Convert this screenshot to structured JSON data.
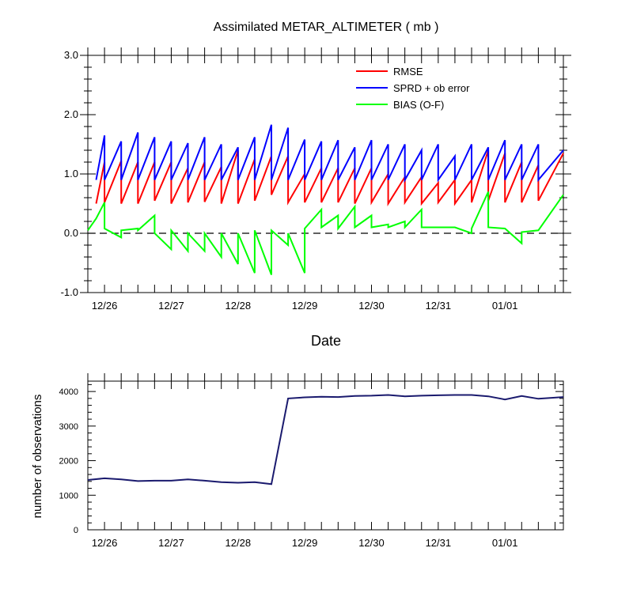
{
  "chart_data": [
    {
      "type": "line",
      "title": "Assimilated METAR_ALTIMETER ( mb )",
      "xlabel": "Date",
      "ylabel": "",
      "ylim": [
        -1.0,
        3.0
      ],
      "yticks": [
        -1.0,
        0.0,
        1.0,
        2.0,
        3.0
      ],
      "ytick_labels": [
        "-1.0",
        "0.0",
        "1.0",
        "2.0",
        "3.0"
      ],
      "x_start": "12/25 18Z",
      "x_end": "01/01 21Z",
      "xticks": [
        {
          "label": "12/26",
          "x": "12/26 00Z"
        },
        {
          "label": "12/27",
          "x": "12/27 00Z"
        },
        {
          "label": "12/28",
          "x": "12/28 00Z"
        },
        {
          "label": "12/29",
          "x": "12/29 00Z"
        },
        {
          "label": "12/30",
          "x": "12/30 00Z"
        },
        {
          "label": "12/31",
          "x": "12/31 00Z"
        },
        {
          "label": "01/01",
          "x": "01/01 00Z"
        }
      ],
      "zero_reference": {
        "value": 0.0,
        "style": "dashed"
      },
      "legend_position": "top-right",
      "series": [
        {
          "name": "RMSE",
          "color": "#ff0000",
          "points": [
            [
              "12/25 21Z",
              0.5
            ],
            [
              "12/26 00Z",
              1.2
            ],
            [
              "12/26 00Z",
              0.52
            ],
            [
              "12/26 06Z",
              1.22
            ],
            [
              "12/26 06Z",
              0.5
            ],
            [
              "12/26 12Z",
              1.2
            ],
            [
              "12/26 12Z",
              0.5
            ],
            [
              "12/26 18Z",
              1.2
            ],
            [
              "12/26 18Z",
              0.55
            ],
            [
              "12/27 00Z",
              1.2
            ],
            [
              "12/27 00Z",
              0.5
            ],
            [
              "12/27 06Z",
              1.1
            ],
            [
              "12/27 06Z",
              0.52
            ],
            [
              "12/27 12Z",
              1.2
            ],
            [
              "12/27 12Z",
              0.53
            ],
            [
              "12/27 18Z",
              1.12
            ],
            [
              "12/27 18Z",
              0.5
            ],
            [
              "12/28 00Z",
              1.4
            ],
            [
              "12/28 00Z",
              0.5
            ],
            [
              "12/28 06Z",
              1.25
            ],
            [
              "12/28 06Z",
              0.55
            ],
            [
              "12/28 12Z",
              1.3
            ],
            [
              "12/28 12Z",
              0.65
            ],
            [
              "12/28 18Z",
              1.3
            ],
            [
              "12/28 18Z",
              0.52
            ],
            [
              "12/29 00Z",
              1.0
            ],
            [
              "12/29 00Z",
              0.52
            ],
            [
              "12/29 06Z",
              1.1
            ],
            [
              "12/29 06Z",
              0.52
            ],
            [
              "12/29 12Z",
              1.1
            ],
            [
              "12/29 12Z",
              0.52
            ],
            [
              "12/29 18Z",
              1.1
            ],
            [
              "12/29 18Z",
              0.5
            ],
            [
              "12/30 00Z",
              1.1
            ],
            [
              "12/30 00Z",
              0.52
            ],
            [
              "12/30 06Z",
              1.0
            ],
            [
              "12/30 06Z",
              0.5
            ],
            [
              "12/30 12Z",
              0.95
            ],
            [
              "12/30 12Z",
              0.52
            ],
            [
              "12/30 18Z",
              0.95
            ],
            [
              "12/30 18Z",
              0.5
            ],
            [
              "12/31 00Z",
              0.85
            ],
            [
              "12/31 00Z",
              0.52
            ],
            [
              "12/31 06Z",
              0.9
            ],
            [
              "12/31 06Z",
              0.5
            ],
            [
              "12/31 12Z",
              0.9
            ],
            [
              "12/31 12Z",
              0.52
            ],
            [
              "12/31 18Z",
              1.4
            ],
            [
              "12/31 18Z",
              0.55
            ],
            [
              "01/01 00Z",
              1.35
            ],
            [
              "01/01 00Z",
              0.52
            ],
            [
              "01/01 06Z",
              1.2
            ],
            [
              "01/01 06Z",
              0.52
            ],
            [
              "01/01 12Z",
              1.15
            ],
            [
              "01/01 12Z",
              0.55
            ],
            [
              "01/01 21Z",
              1.35
            ]
          ]
        },
        {
          "name": "SPRD + ob error",
          "color": "#0000ff",
          "points": [
            [
              "12/25 21Z",
              0.9
            ],
            [
              "12/26 00Z",
              1.65
            ],
            [
              "12/26 00Z",
              0.9
            ],
            [
              "12/26 06Z",
              1.55
            ],
            [
              "12/26 06Z",
              0.9
            ],
            [
              "12/26 12Z",
              1.7
            ],
            [
              "12/26 12Z",
              0.9
            ],
            [
              "12/26 18Z",
              1.62
            ],
            [
              "12/26 18Z",
              0.9
            ],
            [
              "12/27 00Z",
              1.55
            ],
            [
              "12/27 00Z",
              0.9
            ],
            [
              "12/27 06Z",
              1.52
            ],
            [
              "12/27 06Z",
              0.9
            ],
            [
              "12/27 12Z",
              1.62
            ],
            [
              "12/27 12Z",
              0.9
            ],
            [
              "12/27 18Z",
              1.5
            ],
            [
              "12/27 18Z",
              0.9
            ],
            [
              "12/28 00Z",
              1.45
            ],
            [
              "12/28 00Z",
              0.9
            ],
            [
              "12/28 06Z",
              1.62
            ],
            [
              "12/28 06Z",
              0.9
            ],
            [
              "12/28 12Z",
              1.83
            ],
            [
              "12/28 12Z",
              0.9
            ],
            [
              "12/28 18Z",
              1.78
            ],
            [
              "12/28 18Z",
              0.9
            ],
            [
              "12/29 00Z",
              1.58
            ],
            [
              "12/29 00Z",
              0.9
            ],
            [
              "12/29 06Z",
              1.55
            ],
            [
              "12/29 06Z",
              0.9
            ],
            [
              "12/29 12Z",
              1.57
            ],
            [
              "12/29 12Z",
              0.9
            ],
            [
              "12/29 18Z",
              1.45
            ],
            [
              "12/29 18Z",
              0.9
            ],
            [
              "12/30 00Z",
              1.57
            ],
            [
              "12/30 00Z",
              0.9
            ],
            [
              "12/30 06Z",
              1.5
            ],
            [
              "12/30 06Z",
              0.9
            ],
            [
              "12/30 12Z",
              1.5
            ],
            [
              "12/30 12Z",
              0.9
            ],
            [
              "12/30 18Z",
              1.4
            ],
            [
              "12/30 18Z",
              0.9
            ],
            [
              "12/31 00Z",
              1.5
            ],
            [
              "12/31 00Z",
              0.9
            ],
            [
              "12/31 06Z",
              1.3
            ],
            [
              "12/31 06Z",
              0.9
            ],
            [
              "12/31 12Z",
              1.5
            ],
            [
              "12/31 12Z",
              0.9
            ],
            [
              "12/31 18Z",
              1.45
            ],
            [
              "12/31 18Z",
              0.9
            ],
            [
              "01/01 00Z",
              1.57
            ],
            [
              "01/01 00Z",
              0.9
            ],
            [
              "01/01 06Z",
              1.5
            ],
            [
              "01/01 06Z",
              0.9
            ],
            [
              "01/01 12Z",
              1.5
            ],
            [
              "01/01 12Z",
              0.9
            ],
            [
              "01/01 21Z",
              1.4
            ]
          ]
        },
        {
          "name": "BIAS (O-F)",
          "color": "#00ff00",
          "points": [
            [
              "12/25 18Z",
              0.05
            ],
            [
              "12/25 21Z",
              0.25
            ],
            [
              "12/26 00Z",
              0.52
            ],
            [
              "12/26 00Z",
              0.08
            ],
            [
              "12/26 06Z",
              -0.07
            ],
            [
              "12/26 06Z",
              0.05
            ],
            [
              "12/26 12Z",
              0.08
            ],
            [
              "12/26 12Z",
              0.05
            ],
            [
              "12/26 18Z",
              0.3
            ],
            [
              "12/26 18Z",
              0.0
            ],
            [
              "12/27 00Z",
              -0.27
            ],
            [
              "12/27 00Z",
              0.05
            ],
            [
              "12/27 06Z",
              -0.3
            ],
            [
              "12/27 06Z",
              0.0
            ],
            [
              "12/27 12Z",
              -0.3
            ],
            [
              "12/27 12Z",
              0.0
            ],
            [
              "12/27 18Z",
              -0.4
            ],
            [
              "12/27 18Z",
              0.0
            ],
            [
              "12/28 00Z",
              -0.52
            ],
            [
              "12/28 00Z",
              0.0
            ],
            [
              "12/28 06Z",
              -0.67
            ],
            [
              "12/28 06Z",
              0.05
            ],
            [
              "12/28 12Z",
              -0.7
            ],
            [
              "12/28 12Z",
              0.05
            ],
            [
              "12/28 18Z",
              -0.2
            ],
            [
              "12/28 18Z",
              0.0
            ],
            [
              "12/29 00Z",
              -0.67
            ],
            [
              "12/29 00Z",
              0.08
            ],
            [
              "12/29 06Z",
              0.4
            ],
            [
              "12/29 06Z",
              0.1
            ],
            [
              "12/29 12Z",
              0.3
            ],
            [
              "12/29 12Z",
              0.08
            ],
            [
              "12/29 18Z",
              0.45
            ],
            [
              "12/29 18Z",
              0.1
            ],
            [
              "12/30 00Z",
              0.3
            ],
            [
              "12/30 00Z",
              0.1
            ],
            [
              "12/30 06Z",
              0.15
            ],
            [
              "12/30 06Z",
              0.1
            ],
            [
              "12/30 12Z",
              0.2
            ],
            [
              "12/30 12Z",
              0.1
            ],
            [
              "12/30 18Z",
              0.4
            ],
            [
              "12/30 18Z",
              0.1
            ],
            [
              "12/31 00Z",
              0.1
            ],
            [
              "12/31 06Z",
              0.1
            ],
            [
              "12/31 12Z",
              0.0
            ],
            [
              "12/31 12Z",
              0.08
            ],
            [
              "12/31 18Z",
              0.7
            ],
            [
              "12/31 18Z",
              0.1
            ],
            [
              "01/01 00Z",
              0.08
            ],
            [
              "01/01 06Z",
              -0.17
            ],
            [
              "01/01 06Z",
              0.02
            ],
            [
              "01/01 12Z",
              0.05
            ],
            [
              "01/01 12Z",
              0.05
            ],
            [
              "01/01 21Z",
              0.65
            ]
          ]
        }
      ]
    },
    {
      "type": "line",
      "title": "",
      "xlabel": "",
      "ylabel": "number of observations",
      "ylim": [
        0,
        4300
      ],
      "yticks": [
        0,
        1000,
        2000,
        3000,
        4000
      ],
      "ytick_labels": [
        "0",
        "1000",
        "2000",
        "3000",
        "4000"
      ],
      "x_start": "12/25 18Z",
      "x_end": "01/01 21Z",
      "xticks": [
        {
          "label": "12/26",
          "x": "12/26 00Z"
        },
        {
          "label": "12/27",
          "x": "12/27 00Z"
        },
        {
          "label": "12/28",
          "x": "12/28 00Z"
        },
        {
          "label": "12/29",
          "x": "12/29 00Z"
        },
        {
          "label": "12/30",
          "x": "12/30 00Z"
        },
        {
          "label": "12/31",
          "x": "12/31 00Z"
        },
        {
          "label": "01/01",
          "x": "01/01 00Z"
        }
      ],
      "series": [
        {
          "name": "",
          "color": "#1a1a6e",
          "points": [
            [
              "12/25 18Z",
              1440
            ],
            [
              "12/26 00Z",
              1490
            ],
            [
              "12/26 06Z",
              1460
            ],
            [
              "12/26 12Z",
              1410
            ],
            [
              "12/26 18Z",
              1420
            ],
            [
              "12/27 00Z",
              1420
            ],
            [
              "12/27 06Z",
              1460
            ],
            [
              "12/27 12Z",
              1420
            ],
            [
              "12/27 18Z",
              1380
            ],
            [
              "12/28 00Z",
              1360
            ],
            [
              "12/28 06Z",
              1380
            ],
            [
              "12/28 12Z",
              1320
            ],
            [
              "12/28 18Z",
              3800
            ],
            [
              "12/29 00Z",
              3830
            ],
            [
              "12/29 06Z",
              3850
            ],
            [
              "12/29 12Z",
              3840
            ],
            [
              "12/29 18Z",
              3870
            ],
            [
              "12/30 00Z",
              3880
            ],
            [
              "12/30 06Z",
              3900
            ],
            [
              "12/30 12Z",
              3860
            ],
            [
              "12/30 18Z",
              3880
            ],
            [
              "12/31 00Z",
              3890
            ],
            [
              "12/31 06Z",
              3900
            ],
            [
              "12/31 12Z",
              3900
            ],
            [
              "12/31 18Z",
              3860
            ],
            [
              "01/01 00Z",
              3770
            ],
            [
              "01/01 06Z",
              3870
            ],
            [
              "01/01 12Z",
              3790
            ],
            [
              "01/01 21Z",
              3840
            ]
          ]
        }
      ]
    }
  ]
}
